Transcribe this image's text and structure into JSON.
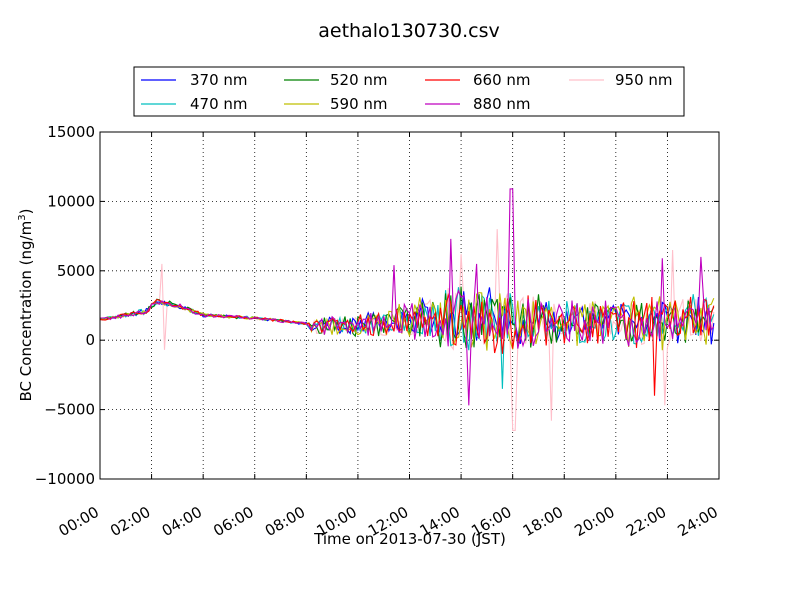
{
  "chart_data": {
    "type": "line",
    "title": "aethalo130730.csv",
    "xlabel": "Time on 2013-07-30 (JST)",
    "ylabel": "BC Concentration (ng/m³)",
    "ylabel_main": "BC Concentration (ng/m",
    "ylabel_sup": "3",
    "ylabel_close": ")",
    "xlim": [
      "2013-07-30 00:00",
      "2013-07-31 00:00"
    ],
    "ylim": [
      -10000,
      15000
    ],
    "grid": true,
    "legend_position": "top-center",
    "x_tick_labels": [
      "00:00",
      "02:00",
      "04:00",
      "06:00",
      "08:00",
      "10:00",
      "12:00",
      "14:00",
      "16:00",
      "18:00",
      "20:00",
      "22:00",
      "24:00"
    ],
    "x_tick_hours": [
      0,
      2,
      4,
      6,
      8,
      10,
      12,
      14,
      16,
      18,
      20,
      22,
      24
    ],
    "y_tick_labels": [
      "−10000",
      "−5000",
      "0",
      "5000",
      "10000",
      "15000"
    ],
    "y_tick_values": [
      -10000,
      -5000,
      0,
      5000,
      10000,
      15000
    ],
    "series": [
      {
        "name": "370 nm",
        "color": "#0000ff"
      },
      {
        "name": "470 nm",
        "color": "#00bfbf"
      },
      {
        "name": "520 nm",
        "color": "#008000"
      },
      {
        "name": "590 nm",
        "color": "#bfbf00"
      },
      {
        "name": "660 nm",
        "color": "#ff0000"
      },
      {
        "name": "880 nm",
        "color": "#bf00bf"
      },
      {
        "name": "950 nm",
        "color": "#ffc0cb"
      }
    ],
    "trend": {
      "hours": [
        0,
        1,
        1.8,
        2.2,
        3,
        4,
        5,
        6,
        7,
        8,
        8.2,
        9,
        10,
        11,
        12,
        13,
        14,
        15,
        16,
        17,
        18,
        19,
        20,
        21,
        22,
        23,
        23.8
      ],
      "values": [
        1500,
        1800,
        2100,
        2800,
        2500,
        1800,
        1700,
        1600,
        1400,
        1200,
        900,
        1000,
        1100,
        1300,
        1500,
        1600,
        1700,
        1500,
        1400,
        1300,
        1300,
        1200,
        1300,
        1400,
        1400,
        1500,
        1300
      ]
    },
    "amplitude": {
      "hours": [
        0,
        2,
        4,
        8,
        8.3,
        10,
        11.5,
        13,
        14,
        15,
        16,
        17,
        18,
        20,
        22,
        23.8
      ],
      "values": [
        120,
        250,
        150,
        100,
        700,
        900,
        1300,
        2200,
        2800,
        2800,
        2700,
        2200,
        1900,
        1900,
        2200,
        2000
      ]
    },
    "spikes": [
      {
        "series": "950 nm",
        "hour": 2.4,
        "value": 5500
      },
      {
        "series": "950 nm",
        "hour": 2.5,
        "value": -700
      },
      {
        "series": "880 nm",
        "hour": 11.4,
        "value": 5400
      },
      {
        "series": "880 nm",
        "hour": 13.6,
        "value": 7300
      },
      {
        "series": "950 nm",
        "hour": 14.0,
        "value": 6200
      },
      {
        "series": "880 nm",
        "hour": 14.6,
        "value": 5500
      },
      {
        "series": "950 nm",
        "hour": 15.4,
        "value": 8000
      },
      {
        "series": "880 nm",
        "hour": 15.95,
        "value": 10900
      },
      {
        "series": "950 nm",
        "hour": 16.05,
        "value": -6500
      },
      {
        "series": "470 nm",
        "hour": 15.6,
        "value": -3500
      },
      {
        "series": "880 nm",
        "hour": 14.3,
        "value": -4700
      },
      {
        "series": "950 nm",
        "hour": 17.5,
        "value": -5800
      },
      {
        "series": "950 nm",
        "hour": 21.9,
        "value": -4700
      },
      {
        "series": "660 nm",
        "hour": 21.5,
        "value": -4000
      },
      {
        "series": "880 nm",
        "hour": 21.8,
        "value": 5900
      },
      {
        "series": "950 nm",
        "hour": 22.2,
        "value": 6500
      },
      {
        "series": "880 nm",
        "hour": 23.3,
        "value": 6000
      }
    ]
  }
}
